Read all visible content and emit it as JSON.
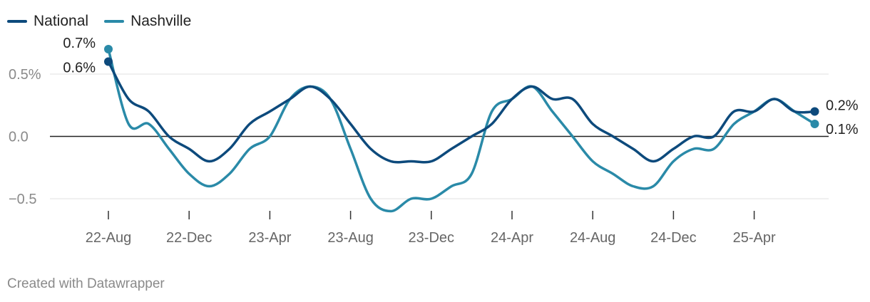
{
  "chart_data": {
    "type": "line",
    "title": "",
    "xlabel": "",
    "ylabel": "",
    "ylim": [
      -0.6,
      0.75
    ],
    "grid": true,
    "legend_position": "top-left",
    "x": [
      "2022-08",
      "2022-09",
      "2022-10",
      "2022-11",
      "2022-12",
      "2023-01",
      "2023-02",
      "2023-03",
      "2023-04",
      "2023-05",
      "2023-06",
      "2023-07",
      "2023-08",
      "2023-09",
      "2023-10",
      "2023-11",
      "2023-12",
      "2024-01",
      "2024-02",
      "2024-03",
      "2024-04",
      "2024-05",
      "2024-06",
      "2024-07",
      "2024-08",
      "2024-09",
      "2024-10",
      "2024-11",
      "2024-12",
      "2025-01",
      "2025-02",
      "2025-03",
      "2025-04",
      "2025-05",
      "2025-06",
      "2025-07"
    ],
    "x_tick_labels": [
      "22-Aug",
      "22-Dec",
      "23-Apr",
      "23-Aug",
      "23-Dec",
      "24-Apr",
      "24-Aug",
      "24-Dec",
      "25-Apr"
    ],
    "y_ticks": [
      0.5,
      0.0,
      -0.5
    ],
    "y_tick_labels": [
      "0.5%",
      "0.0",
      "−0.5"
    ],
    "series": [
      {
        "name": "National",
        "color": "#0d4a7c",
        "values": [
          0.6,
          0.3,
          0.2,
          0.0,
          -0.1,
          -0.2,
          -0.1,
          0.1,
          0.2,
          0.3,
          0.4,
          0.3,
          0.1,
          -0.1,
          -0.2,
          -0.2,
          -0.2,
          -0.1,
          0.0,
          0.1,
          0.3,
          0.4,
          0.3,
          0.3,
          0.1,
          0.0,
          -0.1,
          -0.2,
          -0.1,
          0.0,
          0.0,
          0.2,
          0.2,
          0.3,
          0.2,
          0.2
        ],
        "end_label": "0.2%",
        "start_label": "0.6%"
      },
      {
        "name": "Nashville",
        "color": "#2a8aa8",
        "values": [
          0.7,
          0.1,
          0.1,
          -0.1,
          -0.3,
          -0.4,
          -0.3,
          -0.1,
          0.0,
          0.3,
          0.4,
          0.3,
          -0.1,
          -0.5,
          -0.6,
          -0.5,
          -0.5,
          -0.4,
          -0.3,
          0.2,
          0.3,
          0.4,
          0.2,
          0.0,
          -0.2,
          -0.3,
          -0.4,
          -0.4,
          -0.2,
          -0.1,
          -0.1,
          0.1,
          0.2,
          0.3,
          0.2,
          0.1
        ],
        "end_label": "0.1%",
        "start_label": "0.7%"
      }
    ]
  },
  "footer": {
    "credit": "Created with Datawrapper"
  }
}
